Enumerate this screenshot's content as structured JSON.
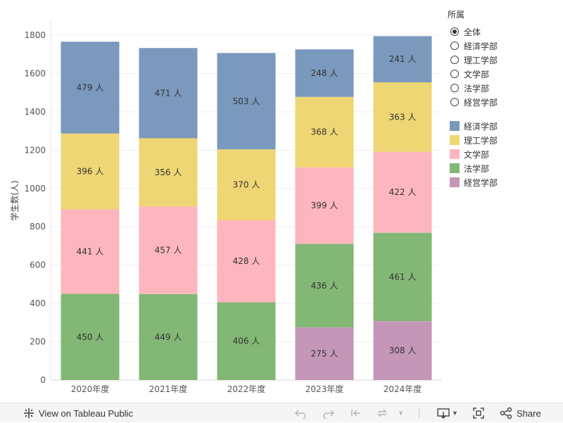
{
  "chart_data": {
    "type": "bar",
    "stacked": true,
    "categories": [
      "2020年度",
      "2021年度",
      "2022年度",
      "2023年度",
      "2024年度"
    ],
    "ylabel": "学生数(人)",
    "ylim": [
      0,
      1850
    ],
    "yticks": [
      0,
      200,
      400,
      600,
      800,
      1000,
      1200,
      1400,
      1600,
      1800
    ],
    "value_suffix": " 人",
    "grid": true,
    "series": [
      {
        "name": "経営学部",
        "color": "#c497b8",
        "values": [
          0,
          0,
          0,
          275,
          308
        ]
      },
      {
        "name": "法学部",
        "color": "#82b775",
        "values": [
          450,
          449,
          406,
          436,
          461
        ]
      },
      {
        "name": "文学部",
        "color": "#feb6be",
        "values": [
          441,
          457,
          428,
          399,
          422
        ]
      },
      {
        "name": "理工学部",
        "color": "#efd674",
        "values": [
          396,
          356,
          370,
          368,
          363
        ]
      },
      {
        "name": "経済学部",
        "color": "#7a99bd",
        "values": [
          479,
          471,
          503,
          248,
          241
        ]
      }
    ]
  },
  "filter": {
    "title": "所属",
    "options": [
      {
        "label": "全体",
        "checked": true
      },
      {
        "label": "経済学部",
        "checked": false
      },
      {
        "label": "理工学部",
        "checked": false
      },
      {
        "label": "文学部",
        "checked": false
      },
      {
        "label": "法学部",
        "checked": false
      },
      {
        "label": "経営学部",
        "checked": false
      }
    ]
  },
  "color_legend": [
    {
      "label": "経済学部",
      "color": "#7a99bd"
    },
    {
      "label": "理工学部",
      "color": "#efd674"
    },
    {
      "label": "文学部",
      "color": "#feb6be"
    },
    {
      "label": "法学部",
      "color": "#82b775"
    },
    {
      "label": "経営学部",
      "color": "#c497b8"
    }
  ],
  "toolbar": {
    "view_label": "View on Tableau Public",
    "share_label": "Share"
  }
}
